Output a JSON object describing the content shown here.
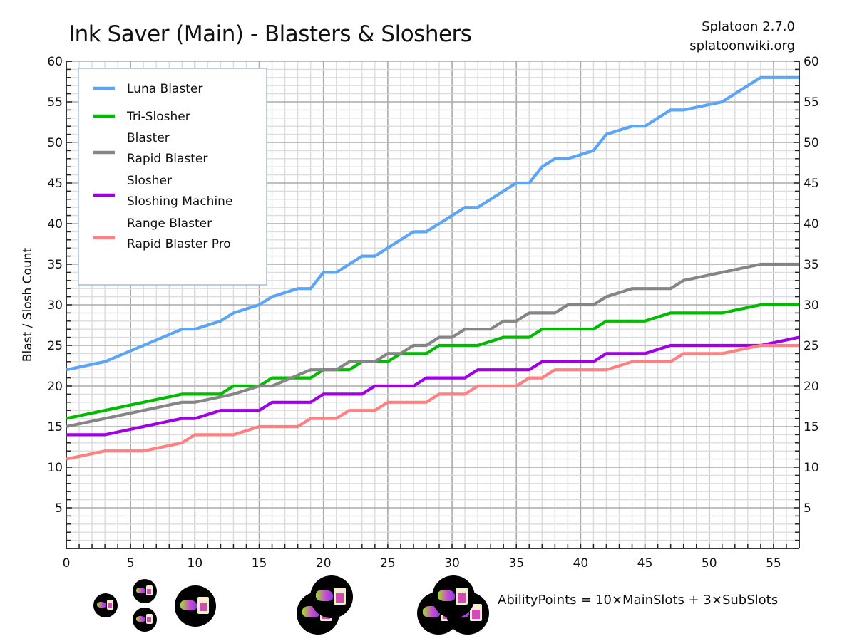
{
  "header": {
    "title": "Ink Saver (Main) - Blasters & Sloshers",
    "version": "Splatoon 2.7.0",
    "site": "splatoonwiki.org"
  },
  "footer": {
    "formula": "AbilityPoints = 10×MainSlots + 3×SubSlots",
    "ability_icon": "ink-saver-main-icon"
  },
  "chart_data": {
    "type": "line",
    "title": "Ink Saver (Main) - Blasters & Sloshers",
    "xlabel": "",
    "ylabel": "Blast / Slosh Count",
    "xlim": [
      0,
      57
    ],
    "ylim": [
      0,
      60
    ],
    "x_ticks": [
      0,
      5,
      10,
      15,
      20,
      25,
      30,
      35,
      40,
      45,
      50,
      55
    ],
    "y_ticks": [
      5,
      10,
      15,
      20,
      25,
      30,
      35,
      40,
      45,
      50,
      55,
      60
    ],
    "grid": true,
    "legend_position": "upper-left",
    "series": [
      {
        "name": "Luna Blaster",
        "color": "#5aa5f5",
        "points": [
          [
            0,
            22
          ],
          [
            3,
            23
          ],
          [
            6,
            25
          ],
          [
            9,
            27
          ],
          [
            10,
            27
          ],
          [
            12,
            28
          ],
          [
            13,
            29
          ],
          [
            15,
            30
          ],
          [
            16,
            31
          ],
          [
            18,
            32
          ],
          [
            19,
            32
          ],
          [
            20,
            34
          ],
          [
            21,
            34
          ],
          [
            23,
            36
          ],
          [
            24,
            36
          ],
          [
            27,
            39
          ],
          [
            28,
            39
          ],
          [
            31,
            42
          ],
          [
            32,
            42
          ],
          [
            35,
            45
          ],
          [
            36,
            45
          ],
          [
            37,
            47
          ],
          [
            38,
            48
          ],
          [
            39,
            48
          ],
          [
            41,
            49
          ],
          [
            42,
            51
          ],
          [
            44,
            52
          ],
          [
            45,
            52
          ],
          [
            47,
            54
          ],
          [
            48,
            54
          ],
          [
            51,
            55
          ],
          [
            54,
            58
          ],
          [
            57,
            58
          ]
        ]
      },
      {
        "name": "Tri-Slosher",
        "color": "#00bb00",
        "points": [
          [
            0,
            16
          ],
          [
            9,
            19
          ],
          [
            12,
            19
          ],
          [
            13,
            20
          ],
          [
            15,
            20
          ],
          [
            16,
            21
          ],
          [
            19,
            21
          ],
          [
            20,
            22
          ],
          [
            22,
            22
          ],
          [
            23,
            23
          ],
          [
            25,
            23
          ],
          [
            26,
            24
          ],
          [
            28,
            24
          ],
          [
            29,
            25
          ],
          [
            32,
            25
          ],
          [
            34,
            26
          ],
          [
            36,
            26
          ],
          [
            37,
            27
          ],
          [
            41,
            27
          ],
          [
            42,
            28
          ],
          [
            45,
            28
          ],
          [
            47,
            29
          ],
          [
            51,
            29
          ],
          [
            54,
            30
          ],
          [
            57,
            30
          ]
        ]
      },
      {
        "name": "Blaster\nRapid Blaster",
        "legend_lines": [
          "Blaster",
          "Rapid Blaster"
        ],
        "color": "#858585",
        "points": [
          [
            0,
            15
          ],
          [
            9,
            18
          ],
          [
            10,
            18
          ],
          [
            13,
            19
          ],
          [
            15,
            20
          ],
          [
            16,
            20
          ],
          [
            19,
            22
          ],
          [
            21,
            22
          ],
          [
            22,
            23
          ],
          [
            24,
            23
          ],
          [
            25,
            24
          ],
          [
            26,
            24
          ],
          [
            27,
            25
          ],
          [
            28,
            25
          ],
          [
            29,
            26
          ],
          [
            30,
            26
          ],
          [
            31,
            27
          ],
          [
            33,
            27
          ],
          [
            34,
            28
          ],
          [
            35,
            28
          ],
          [
            36,
            29
          ],
          [
            38,
            29
          ],
          [
            39,
            30
          ],
          [
            41,
            30
          ],
          [
            42,
            31
          ],
          [
            44,
            32
          ],
          [
            47,
            32
          ],
          [
            48,
            33
          ],
          [
            54,
            35
          ],
          [
            57,
            35
          ]
        ]
      },
      {
        "name": "Slosher\nSloshing Machine",
        "legend_lines": [
          "Slosher",
          "Sloshing Machine"
        ],
        "color": "#a000e6",
        "points": [
          [
            0,
            14
          ],
          [
            3,
            14
          ],
          [
            9,
            16
          ],
          [
            10,
            16
          ],
          [
            12,
            17
          ],
          [
            15,
            17
          ],
          [
            16,
            18
          ],
          [
            19,
            18
          ],
          [
            20,
            19
          ],
          [
            23,
            19
          ],
          [
            24,
            20
          ],
          [
            27,
            20
          ],
          [
            28,
            21
          ],
          [
            31,
            21
          ],
          [
            32,
            22
          ],
          [
            36,
            22
          ],
          [
            37,
            23
          ],
          [
            41,
            23
          ],
          [
            42,
            24
          ],
          [
            45,
            24
          ],
          [
            47,
            25
          ],
          [
            54,
            25
          ],
          [
            57,
            26
          ]
        ]
      },
      {
        "name": "Range Blaster\nRapid Blaster Pro",
        "legend_lines": [
          "Range Blaster",
          "Rapid Blaster Pro"
        ],
        "color": "#ff8080",
        "points": [
          [
            0,
            11
          ],
          [
            3,
            12
          ],
          [
            6,
            12
          ],
          [
            9,
            13
          ],
          [
            10,
            14
          ],
          [
            13,
            14
          ],
          [
            15,
            15
          ],
          [
            18,
            15
          ],
          [
            19,
            16
          ],
          [
            21,
            16
          ],
          [
            22,
            17
          ],
          [
            24,
            17
          ],
          [
            25,
            18
          ],
          [
            28,
            18
          ],
          [
            29,
            19
          ],
          [
            31,
            19
          ],
          [
            32,
            20
          ],
          [
            35,
            20
          ],
          [
            36,
            21
          ],
          [
            37,
            21
          ],
          [
            38,
            22
          ],
          [
            42,
            22
          ],
          [
            44,
            23
          ],
          [
            47,
            23
          ],
          [
            48,
            24
          ],
          [
            51,
            24
          ],
          [
            54,
            25
          ],
          [
            57,
            25
          ]
        ]
      }
    ],
    "slot_markers": [
      {
        "x": 3,
        "main": 0,
        "sub": 1
      },
      {
        "x": 6,
        "main": 0,
        "sub": 2
      },
      {
        "x": 10,
        "main": 1,
        "sub": 0
      },
      {
        "x": 20,
        "main": 2,
        "sub": 0
      },
      {
        "x": 30,
        "main": 3,
        "sub": 0
      }
    ]
  }
}
